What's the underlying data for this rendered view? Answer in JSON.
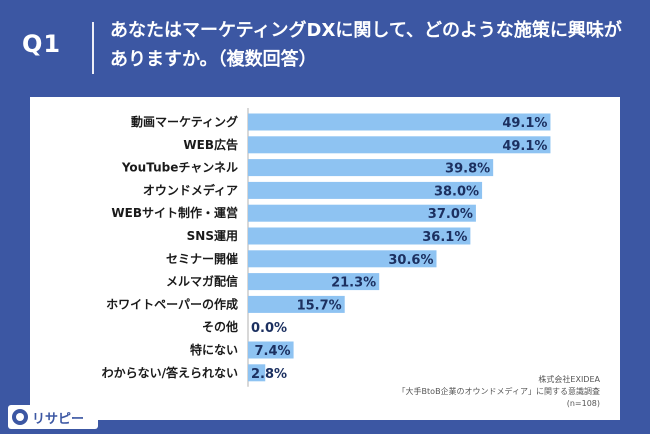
{
  "header": {
    "question_label": "Q1",
    "question_text": "あなたはマーケティングDXに関して、どのような施策に興味がありますか。（複数回答）"
  },
  "chart_data": {
    "type": "bar",
    "orientation": "horizontal",
    "categories": [
      "動画マーケティング",
      "WEB広告",
      "YouTubeチャンネル",
      "オウンドメディア",
      "WEBサイト制作・運営",
      "SNS運用",
      "セミナー開催",
      "メルマガ配信",
      "ホワイトペーパーの作成",
      "その他",
      "特にない",
      "わからない/答えられない"
    ],
    "values": [
      49.1,
      49.1,
      39.8,
      38.0,
      37.0,
      36.1,
      30.6,
      21.3,
      15.7,
      0.0,
      7.4,
      2.8
    ],
    "value_labels": [
      "49.1%",
      "49.1%",
      "39.8%",
      "38.0%",
      "37.0%",
      "36.1%",
      "30.6%",
      "21.3%",
      "15.7%",
      "0.0%",
      "7.4%",
      "2.8%"
    ],
    "unit": "%",
    "xlim": [
      0,
      50
    ],
    "bar_color": "#8ec3f2"
  },
  "source": {
    "line1": "株式会社EXIDEA",
    "line2": "「大手BtoB企業のオウンドメディア」に関する意識調査",
    "line3": "(n=108)"
  },
  "logo": {
    "text": "リサピー"
  },
  "colors": {
    "header_bg": "#3c57a3",
    "bar": "#8ec3f2",
    "panel": "#ffffff"
  }
}
